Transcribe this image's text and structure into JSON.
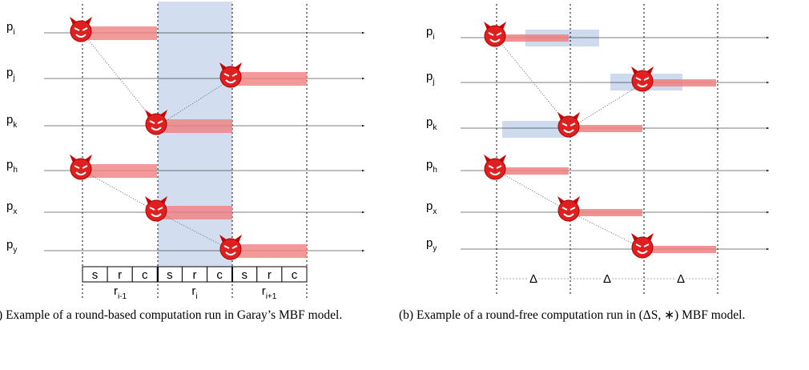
{
  "panel_a": {
    "processes": [
      {
        "name": "p",
        "sub": "i"
      },
      {
        "name": "p",
        "sub": "j"
      },
      {
        "name": "p",
        "sub": "k"
      },
      {
        "name": "p",
        "sub": "h"
      },
      {
        "name": "p",
        "sub": "x"
      },
      {
        "name": "p",
        "sub": "y"
      }
    ],
    "phases": [
      "s",
      "r",
      "c",
      "s",
      "r",
      "c",
      "s",
      "r",
      "c"
    ],
    "rounds": [
      {
        "name": "r",
        "sub": "i-1"
      },
      {
        "name": "r",
        "sub": "i"
      },
      {
        "name": "r",
        "sub": "i+1"
      }
    ],
    "caption": "(a) Example of a round-based computation run in Garay’s MBF model."
  },
  "panel_b": {
    "processes": [
      {
        "name": "p",
        "sub": "i"
      },
      {
        "name": "p",
        "sub": "j"
      },
      {
        "name": "p",
        "sub": "k"
      },
      {
        "name": "p",
        "sub": "h"
      },
      {
        "name": "p",
        "sub": "x"
      },
      {
        "name": "p",
        "sub": "y"
      }
    ],
    "deltas": [
      "Δ",
      "Δ",
      "Δ"
    ],
    "caption": "(b) Example of a round-free computation run in (ΔS, ∗) MBF model."
  }
}
